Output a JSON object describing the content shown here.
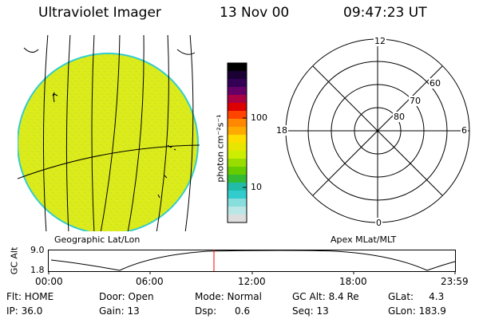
{
  "header": {
    "title": "Ultraviolet Imager",
    "date": "13 Nov 00",
    "time": "09:47:23 UT"
  },
  "globe": {
    "label": "Geographic Lat/Lon",
    "fill_color": "#dcec1a",
    "limb_color": "#33cccc"
  },
  "colorbar": {
    "unit_label": "photon cm⁻²s⁻¹",
    "tick_100": "100",
    "tick_10": "10",
    "colors": [
      "#000000",
      "#1a0033",
      "#330055",
      "#660066",
      "#aa0044",
      "#dd0000",
      "#ff4400",
      "#ff8800",
      "#ffaa00",
      "#ffdd00",
      "#e6e600",
      "#ccee00",
      "#99dd00",
      "#66cc00",
      "#33bb33",
      "#22bbaa",
      "#33cccc",
      "#88dddd",
      "#bbe6e6",
      "#dddddd"
    ]
  },
  "polar": {
    "label": "Apex MLat/MLT",
    "mlt_top": "12",
    "mlt_bottom": "0",
    "mlt_left": "18",
    "mlt_right": "6",
    "lat_60": "60",
    "lat_70": "70",
    "lat_80": "80"
  },
  "timeline": {
    "axis_label": "GC Alt",
    "y_max": "9.0",
    "y_min": "1.8",
    "ticks": [
      "00:00",
      "06:00",
      "12:00",
      "18:00",
      "23:59"
    ],
    "marker_color": "#ff0000"
  },
  "info": {
    "flt": "Flt: HOME",
    "ip": "IP: 36.0",
    "door": "Door: Open",
    "gain": "Gain: 13",
    "mode": "Mode: Normal",
    "dsp": "Dsp:      0.6",
    "gcalt": "GC Alt: 8.4 Re",
    "seq": "Seq: 13",
    "glat": "GLat:     4.3",
    "glon": "GLon: 183.9"
  }
}
